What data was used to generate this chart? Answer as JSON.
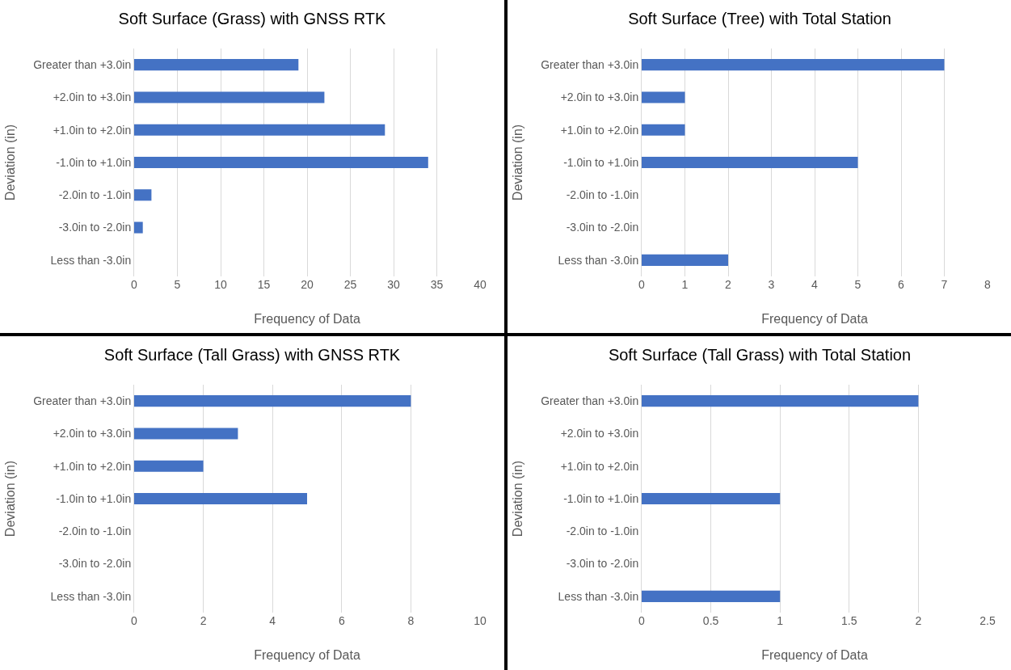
{
  "chart_data": [
    {
      "type": "bar",
      "orientation": "horizontal",
      "title": "Soft Surface (Grass) with GNSS RTK",
      "xlabel": "Frequency of Data",
      "ylabel": "Deviation (in)",
      "categories": [
        "Greater than +3.0in",
        "+2.0in to +3.0in",
        "+1.0in to +2.0in",
        "-1.0in to +1.0in",
        "-2.0in to -1.0in",
        "-3.0in to -2.0in",
        "Less than -3.0in"
      ],
      "values": [
        19,
        22,
        29,
        34,
        2,
        1,
        0
      ],
      "color": "#4472c4",
      "xlim": [
        0,
        40
      ],
      "xticks": [
        0,
        5,
        10,
        15,
        20,
        25,
        30,
        35,
        40
      ],
      "grid": "x"
    },
    {
      "type": "bar",
      "orientation": "horizontal",
      "title": "Soft Surface (Tree) with Total Station",
      "xlabel": "Frequency of Data",
      "ylabel": "Deviation (in)",
      "categories": [
        "Greater than +3.0in",
        "+2.0in to +3.0in",
        "+1.0in to +2.0in",
        "-1.0in to +1.0in",
        "-2.0in to -1.0in",
        "-3.0in to -2.0in",
        "Less than -3.0in"
      ],
      "values": [
        7,
        1,
        1,
        5,
        0,
        0,
        2
      ],
      "color": "#4472c4",
      "xlim": [
        0,
        8
      ],
      "xticks": [
        0,
        1,
        2,
        3,
        4,
        5,
        6,
        7,
        8
      ],
      "grid": "x"
    },
    {
      "type": "bar",
      "orientation": "horizontal",
      "title": "Soft Surface (Tall Grass) with GNSS RTK",
      "xlabel": "Frequency of Data",
      "ylabel": "Deviation (in)",
      "categories": [
        "Greater than +3.0in",
        "+2.0in to +3.0in",
        "+1.0in to +2.0in",
        "-1.0in to +1.0in",
        "-2.0in to -1.0in",
        "-3.0in to -2.0in",
        "Less than -3.0in"
      ],
      "values": [
        8,
        3,
        2,
        5,
        0,
        0,
        0
      ],
      "color": "#4472c4",
      "xlim": [
        0,
        10
      ],
      "xticks": [
        0,
        2,
        4,
        6,
        8,
        10
      ],
      "grid": "x"
    },
    {
      "type": "bar",
      "orientation": "horizontal",
      "title": "Soft Surface (Tall Grass) with Total Station",
      "xlabel": "Frequency of Data",
      "ylabel": "Deviation (in)",
      "categories": [
        "Greater than +3.0in",
        "+2.0in to +3.0in",
        "+1.0in to +2.0in",
        "-1.0in to +1.0in",
        "-2.0in to -1.0in",
        "-3.0in to -2.0in",
        "Less than -3.0in"
      ],
      "values": [
        2,
        0,
        0,
        1,
        0,
        0,
        1
      ],
      "color": "#4472c4",
      "xlim": [
        0,
        2.5
      ],
      "xticks": [
        0,
        0.5,
        1,
        1.5,
        2,
        2.5
      ],
      "grid": "x"
    }
  ]
}
